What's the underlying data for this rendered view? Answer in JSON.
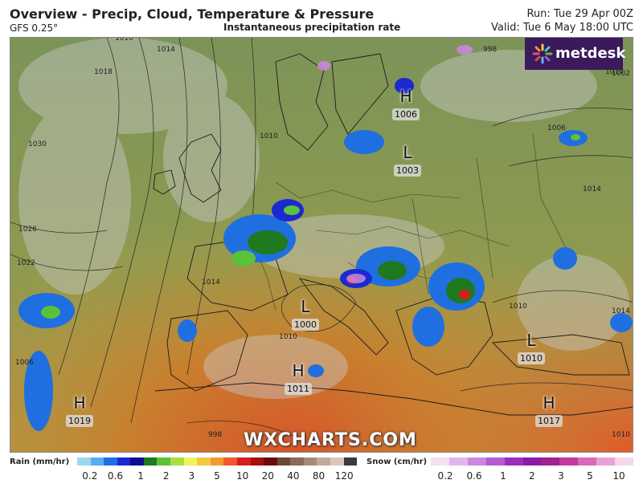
{
  "header": {
    "title": "Overview - Precip, Cloud, Temperature & Pressure",
    "model": "GFS 0.25°",
    "subtitle": "Instantaneous precipitation rate",
    "run": "Run: Tue 29 Apr 00Z",
    "valid": "Valid: Tue 6 May 18:00 UTC"
  },
  "brand": {
    "logo_text": "metdesk",
    "logo_icon": "starburst-icon",
    "watermark": "WXCHARTS.COM"
  },
  "pressure_centers": [
    {
      "type": "H",
      "value": "1006"
    },
    {
      "type": "L",
      "value": "1003"
    },
    {
      "type": "L",
      "value": "1000"
    },
    {
      "type": "H",
      "value": "1011"
    },
    {
      "type": "L",
      "value": "1010"
    },
    {
      "type": "H",
      "value": "1017"
    },
    {
      "type": "H",
      "value": "1019"
    }
  ],
  "isobar_labels": [
    "1010",
    "1014",
    "1018",
    "1030",
    "1026",
    "1022",
    "1014",
    "1010",
    "1014",
    "1006",
    "1002",
    "998",
    "1014",
    "1010",
    "1014",
    "1010",
    "998",
    "1006",
    "1010"
  ],
  "legend": {
    "rain": {
      "label": "Rain (mm/hr)",
      "colors": [
        "#9fd7ee",
        "#55aef0",
        "#1f6fe0",
        "#1a2ad0",
        "#0e0e8c",
        "#1e7a1e",
        "#5cc13a",
        "#a8e040",
        "#f2f25a",
        "#f5c842",
        "#f59a32",
        "#f05a28",
        "#d81e1e",
        "#a50f0f",
        "#6e0a0a",
        "#6a4a3a",
        "#8a6a5a",
        "#a88a7a",
        "#c2aa9a",
        "#d8c8bb",
        "#3a3a3a"
      ],
      "ticks": [
        "0.2",
        "0.6",
        "1",
        "2",
        "3",
        "5",
        "10",
        "20",
        "40",
        "80",
        "120"
      ]
    },
    "snow": {
      "label": "Snow (cm/hr)",
      "colors": [
        "#f2e2f2",
        "#e2b6ea",
        "#cc86de",
        "#b45ad2",
        "#9a2ec4",
        "#8c1aa8",
        "#a0208e",
        "#c03a9e",
        "#d86ab8",
        "#eaa2d4",
        "#f6d6ec"
      ],
      "ticks": [
        "0.2",
        "0.6",
        "1",
        "2",
        "3",
        "5",
        "10"
      ]
    }
  }
}
